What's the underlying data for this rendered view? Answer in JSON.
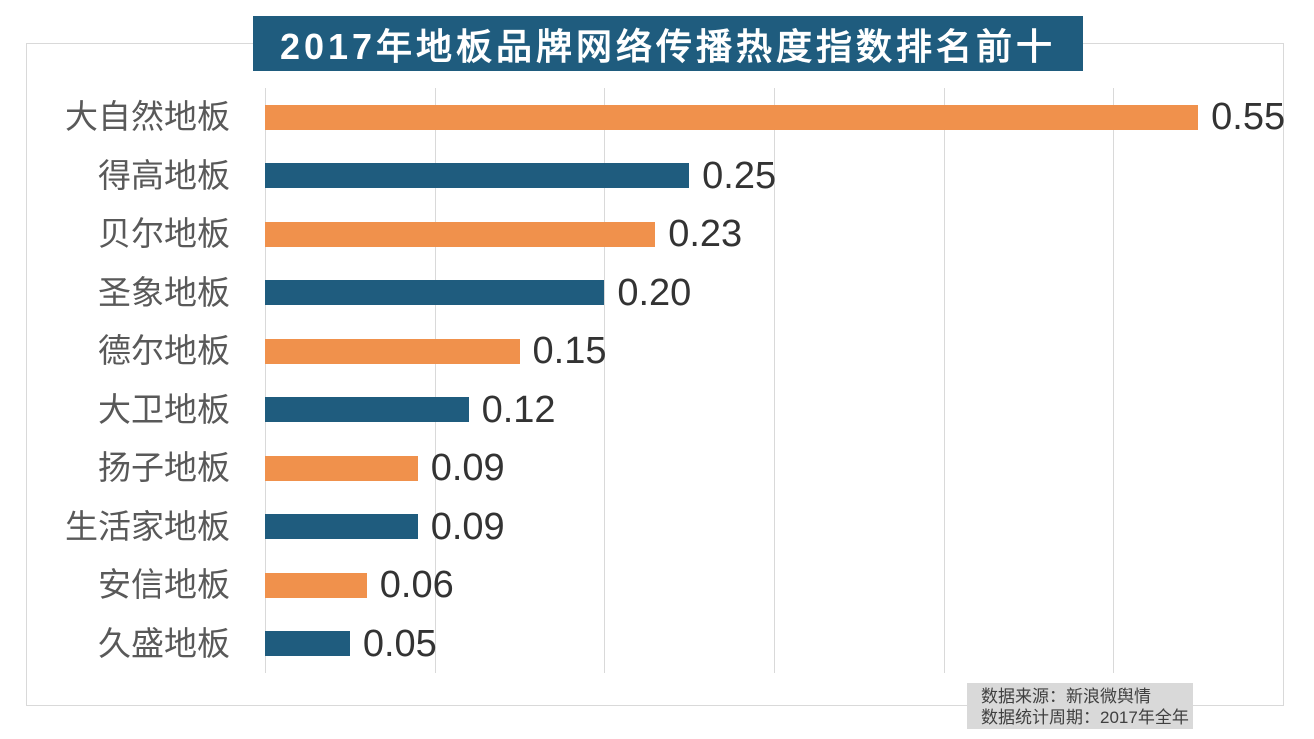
{
  "title": "2017年地板品牌网络传播热度指数排名前十",
  "chart_data": {
    "type": "bar",
    "orientation": "horizontal",
    "title": "2017年地板品牌网络传播热度指数排名前十",
    "categories": [
      "大自然地板",
      "得高地板",
      "贝尔地板",
      "圣象地板",
      "德尔地板",
      "大卫地板",
      "扬子地板",
      "生活家地板",
      "安信地板",
      "久盛地板"
    ],
    "values": [
      0.55,
      0.25,
      0.23,
      0.2,
      0.15,
      0.12,
      0.09,
      0.09,
      0.06,
      0.05
    ],
    "value_labels": [
      "0.55",
      "0.25",
      "0.23",
      "0.20",
      "0.15",
      "0.12",
      "0.09",
      "0.09",
      "0.06",
      "0.05"
    ],
    "xlim": [
      0,
      0.6
    ],
    "gridline_step": 0.1,
    "grid": true,
    "legend": "none",
    "xlabel": "",
    "ylabel": ""
  },
  "source": {
    "line1": "数据来源：新浪微舆情",
    "line2": "数据统计周期：2017年全年"
  },
  "colors": {
    "bar_odd_rows": "#F0914C",
    "bar_even_rows": "#1F5C7E",
    "title_bg": "#1F5C7E",
    "title_text": "#FFFFFF",
    "grid": "#D9D9D9",
    "category_label": "#595959",
    "value_label": "#333333",
    "source_bg": "#D9D9D9",
    "source_text": "#404040"
  }
}
